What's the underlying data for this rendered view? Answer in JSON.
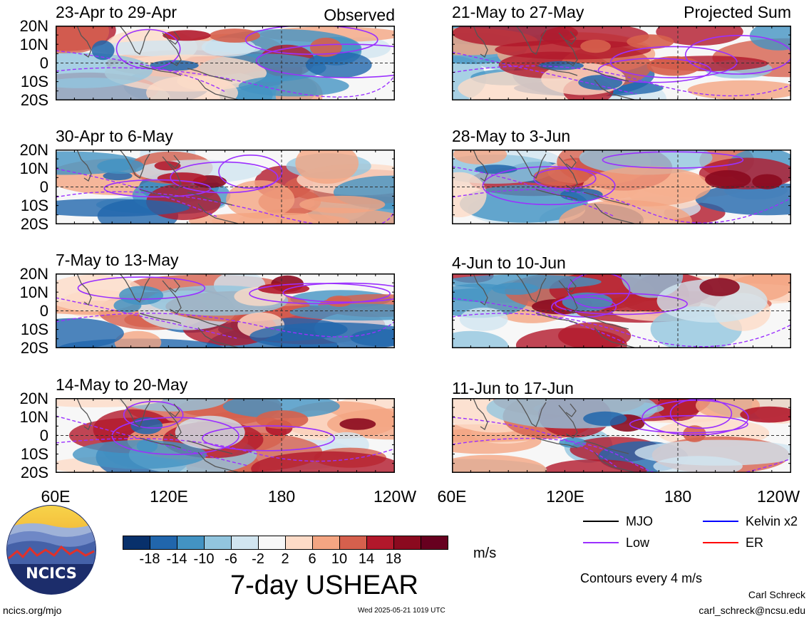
{
  "headers": {
    "observed": "Observed",
    "projected": "Projected Sum"
  },
  "lat_labels": [
    "20N",
    "10N",
    "0",
    "10S",
    "20S"
  ],
  "lon_labels": [
    "60E",
    "120E",
    "180",
    "120W"
  ],
  "panels": [
    {
      "title": "23-Apr to 29-Apr",
      "seed": 11,
      "side": "observed"
    },
    {
      "title": "30-Apr to 6-May",
      "seed": 23,
      "side": "observed"
    },
    {
      "title": "7-May to 13-May",
      "seed": 37,
      "side": "observed"
    },
    {
      "title": "14-May to 20-May",
      "seed": 41,
      "side": "observed"
    },
    {
      "title": "21-May to 27-May",
      "seed": 53,
      "side": "projected"
    },
    {
      "title": "28-May to 3-Jun",
      "seed": 67,
      "side": "projected"
    },
    {
      "title": "4-Jun to 10-Jun",
      "seed": 71,
      "side": "projected"
    },
    {
      "title": "11-Jun to 17-Jun",
      "seed": 83,
      "side": "projected"
    }
  ],
  "colorbar": {
    "colors": [
      "#08306b",
      "#2166ac",
      "#4393c3",
      "#92c5de",
      "#d1e5f0",
      "#f7f7f7",
      "#fddbc7",
      "#f4a582",
      "#d6604d",
      "#b2182b",
      "#8b0a1f",
      "#67001f"
    ],
    "labels": [
      "-18",
      "-14",
      "-10",
      "-6",
      "-2",
      "2",
      "6",
      "10",
      "14",
      "18"
    ],
    "unit": "m/s"
  },
  "main_title": "7-day USHEAR",
  "legend": {
    "items": [
      {
        "label": "MJO",
        "color": "#000000"
      },
      {
        "label": "Kelvin x2",
        "color": "#0000ff"
      },
      {
        "label": "Low",
        "color": "#9b30ff"
      },
      {
        "label": "ER",
        "color": "#ff0000"
      }
    ],
    "contour_note": "Contours every 4 m/s"
  },
  "logo": {
    "text": "NCICS"
  },
  "footer": {
    "url": "ncics.org/mjo",
    "timestamp": "Wed 2025-05-21 1019 UTC",
    "author": "Carl Schreck",
    "email": "carl_schreck@ncsu.edu"
  }
}
